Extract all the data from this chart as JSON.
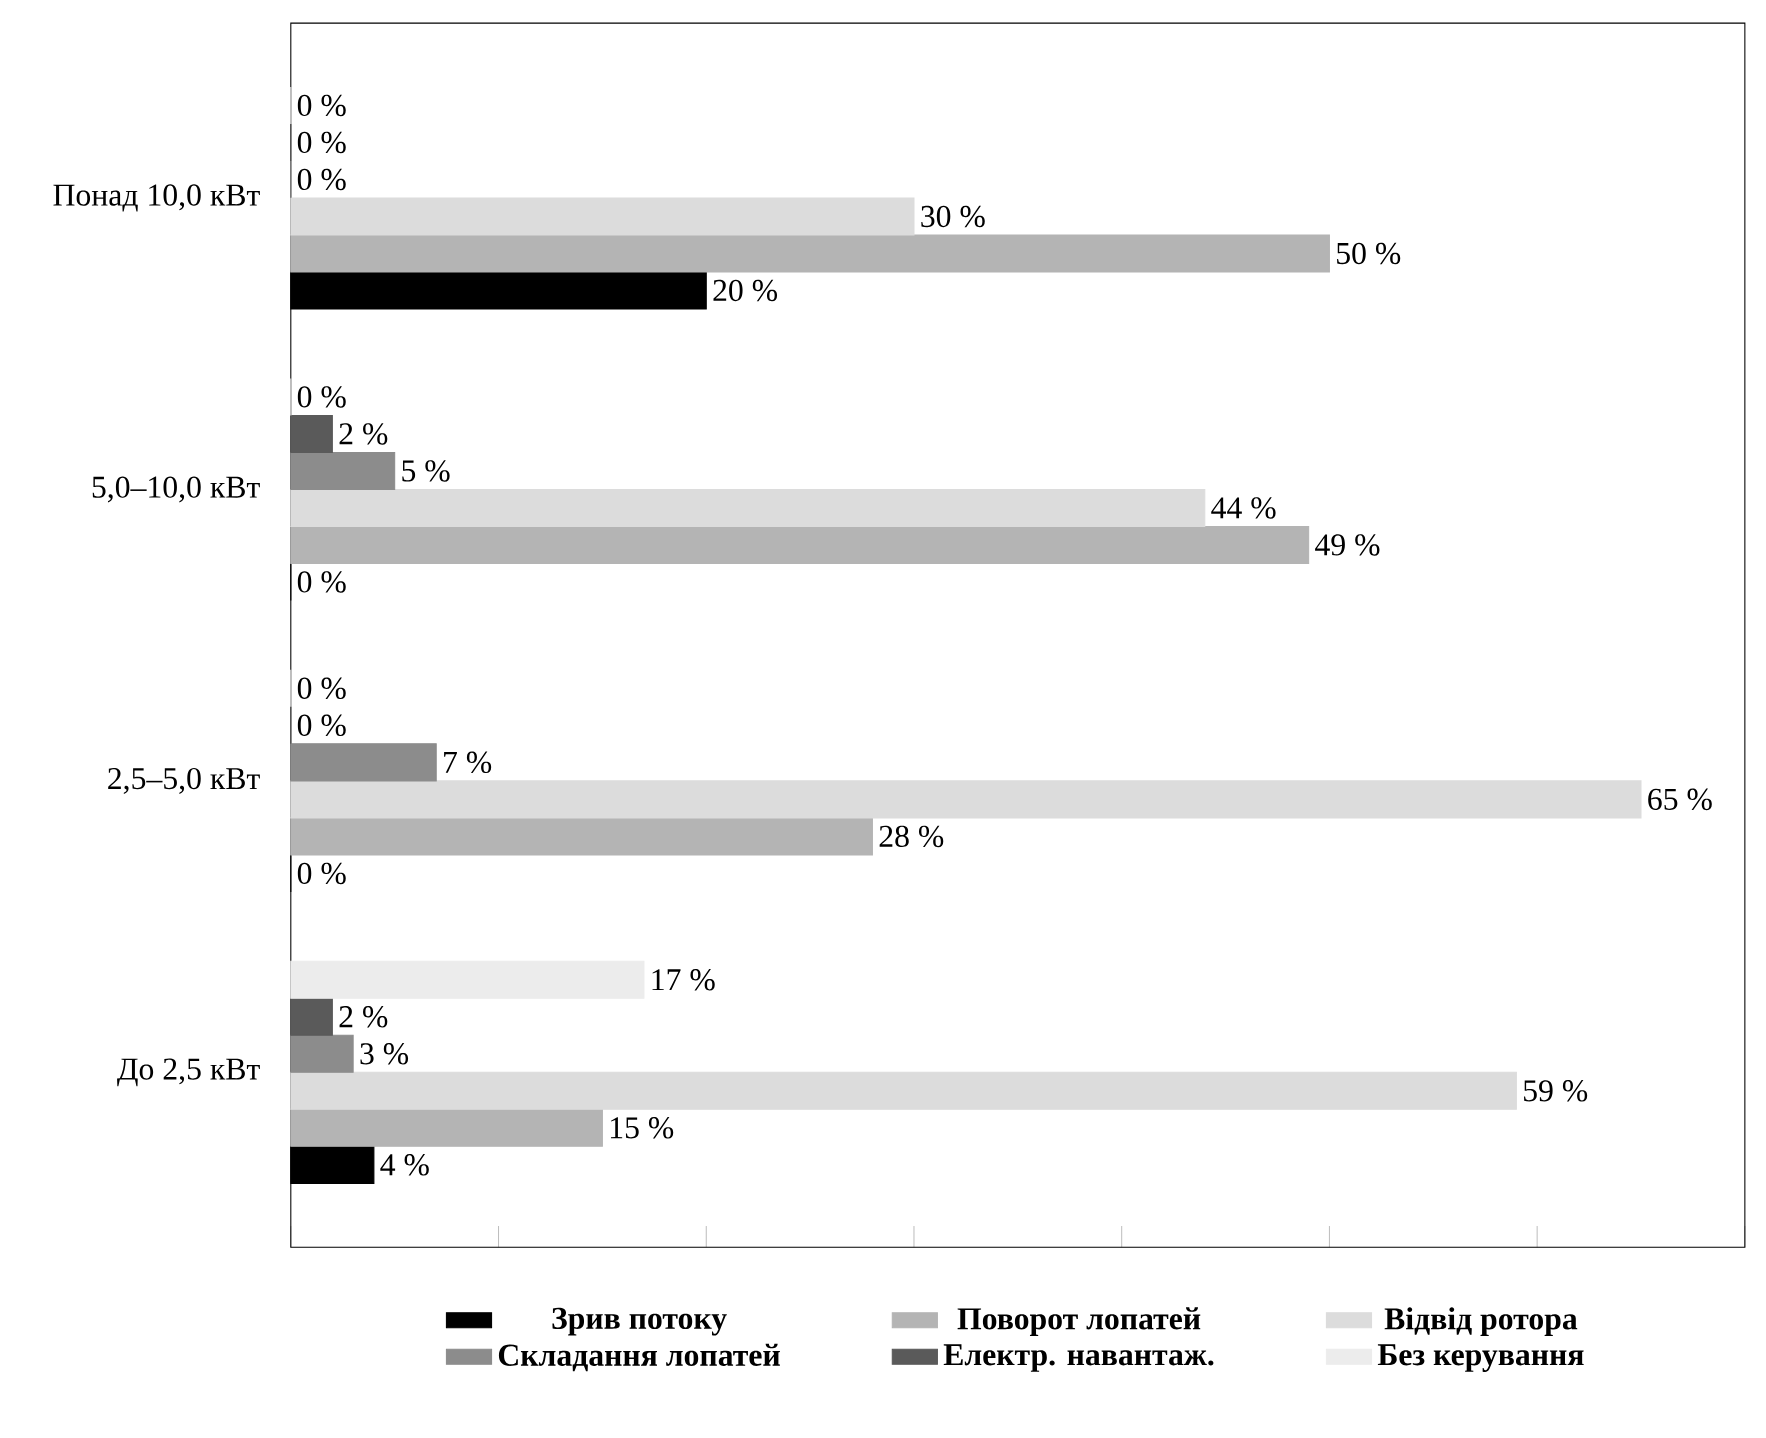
{
  "chart_data": {
    "type": "bar",
    "orientation": "horizontal",
    "categories": [
      "Понад 10,0 кВт",
      "5,0–10,0 кВт",
      "2,5–5,0 кВт",
      "До 2,5 кВт"
    ],
    "series": [
      {
        "name": "Зрив потоку",
        "color": "#000000",
        "values": [
          20,
          0,
          0,
          4
        ],
        "value_labels": [
          "20 %",
          "0 %",
          "0 %",
          "4 %"
        ]
      },
      {
        "name": "Поворот лопатей",
        "color": "#b4b4b4",
        "values": [
          50,
          49,
          28,
          15
        ],
        "value_labels": [
          "50 %",
          "49 %",
          "28 %",
          "15 %"
        ]
      },
      {
        "name": "Відвід ротора",
        "color": "#dcdcdc",
        "values": [
          30,
          44,
          65,
          59
        ],
        "value_labels": [
          "30 %",
          "44 %",
          "65 %",
          "59 %"
        ]
      },
      {
        "name": "Складання лопатей",
        "color": "#8c8c8c",
        "values": [
          0,
          5,
          7,
          3
        ],
        "value_labels": [
          "0 %",
          "5 %",
          "7 %",
          "3 %"
        ]
      },
      {
        "name": "Електр. навантаж.",
        "color": "#5a5a5a",
        "values": [
          0,
          2,
          0,
          2
        ],
        "value_labels": [
          "0 %",
          "2 %",
          "0 %",
          "2 %"
        ]
      },
      {
        "name": "Без керування",
        "color": "#ececec",
        "values": [
          0,
          0,
          0,
          17
        ],
        "value_labels": [
          "0 %",
          "0 %",
          "0 %",
          "17 %"
        ]
      }
    ],
    "xlim": [
      0,
      70
    ],
    "xticks": [
      {
        "value": 0,
        "label": null
      },
      {
        "value": 10,
        "label": null
      },
      {
        "value": 20,
        "label": null
      },
      {
        "value": 30,
        "label": null
      },
      {
        "value": 40,
        "label": null
      },
      {
        "value": 50,
        "label": null
      },
      {
        "value": 60,
        "label": null
      },
      {
        "value": 70,
        "label": null
      }
    ],
    "tick_labels": "y",
    "legend": "bottom"
  }
}
